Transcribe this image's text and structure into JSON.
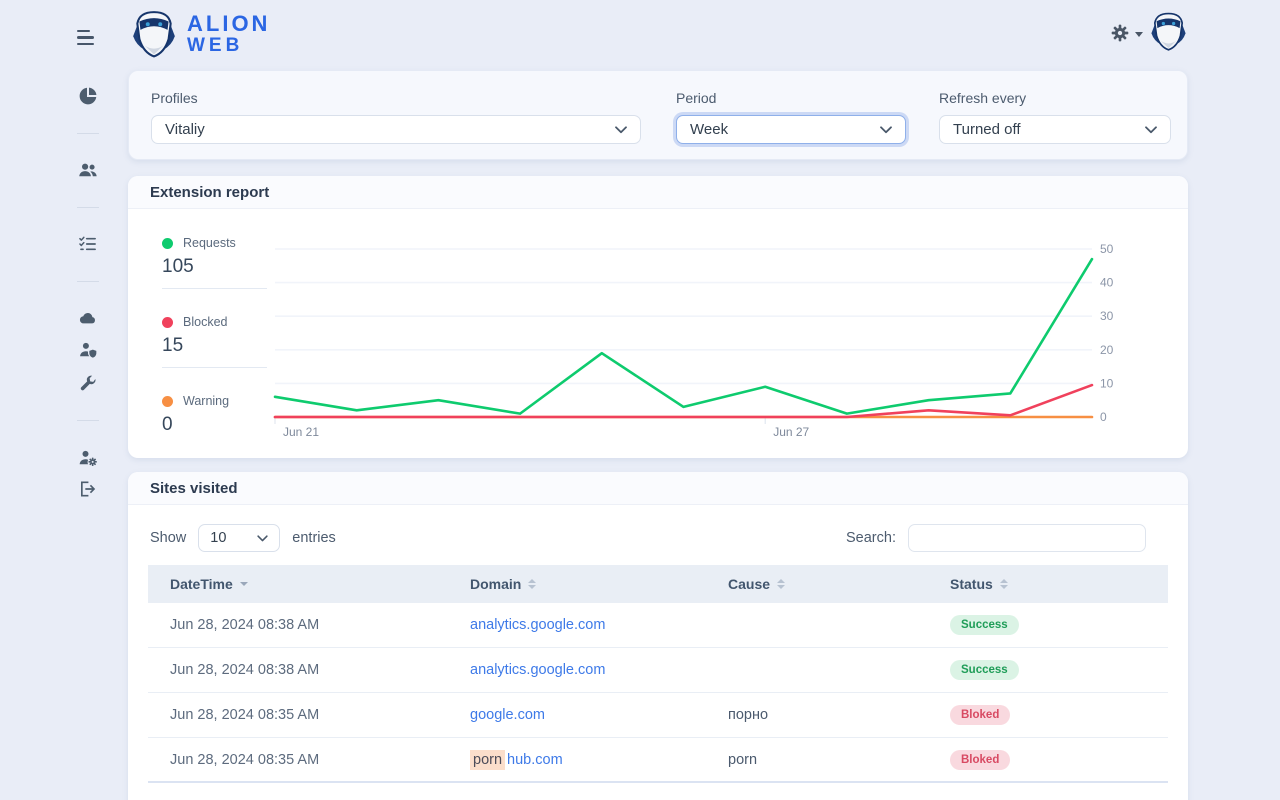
{
  "app": {
    "brand_line1": "ALION",
    "brand_line2": "WEB"
  },
  "header": {
    "menu_icon": "hamburger-menu",
    "gear_icon": "settings-gear",
    "avatar_icon": "robot-avatar"
  },
  "sidebar": {
    "items": [
      {
        "icon": "pie-chart"
      },
      {
        "divider": true
      },
      {
        "icon": "users"
      },
      {
        "divider": true
      },
      {
        "icon": "checklist"
      },
      {
        "divider": true
      },
      {
        "icon": "cloud"
      },
      {
        "icon": "user-shield"
      },
      {
        "icon": "wrench"
      },
      {
        "divider": true
      },
      {
        "icon": "user-gear"
      },
      {
        "icon": "logout"
      }
    ]
  },
  "filters": {
    "profiles": {
      "label": "Profiles",
      "value": "Vitaliy"
    },
    "period": {
      "label": "Period",
      "value": "Week",
      "focused": true
    },
    "refresh": {
      "label": "Refresh every",
      "value": "Turned off"
    }
  },
  "report": {
    "title": "Extension report",
    "legend": [
      {
        "label": "Requests",
        "value": "105",
        "color": "#0ecb6e"
      },
      {
        "label": "Blocked",
        "value": "15",
        "color": "#f0415c"
      },
      {
        "label": "Warning",
        "value": "0",
        "color": "#f78f43"
      }
    ]
  },
  "chart_data": {
    "type": "line",
    "x_labels": [
      "Jun 21",
      "",
      "",
      "",
      "",
      "",
      "Jun 27",
      "",
      "",
      "",
      ""
    ],
    "series": [
      {
        "name": "Requests",
        "color": "#0ecb6e",
        "values": [
          6,
          2,
          5,
          1,
          19,
          3,
          9,
          1,
          5,
          7,
          47
        ]
      },
      {
        "name": "Blocked",
        "color": "#f0415c",
        "values": [
          0,
          0,
          0,
          0,
          0,
          0,
          0,
          0,
          2,
          0.5,
          9.5
        ]
      },
      {
        "name": "Warning",
        "color": "#f78f43",
        "values": [
          0,
          0,
          0,
          0,
          0,
          0,
          0,
          0,
          0,
          0,
          0
        ]
      }
    ],
    "ylim": [
      0,
      50
    ],
    "yticks": [
      0,
      10,
      20,
      30,
      40,
      50
    ],
    "y_axis_side": "right",
    "xticks_visible": [
      {
        "index": 0,
        "label": "Jun 21"
      },
      {
        "index": 6,
        "label": "Jun 27"
      }
    ],
    "grid": true,
    "legend_position": "left"
  },
  "sites": {
    "title": "Sites visited",
    "show_label": "Show",
    "page_size": "10",
    "entries_label": "entries",
    "search_label": "Search:",
    "search_value": "",
    "columns": [
      {
        "label": "DateTime",
        "sort": "desc"
      },
      {
        "label": "Domain",
        "sort": "both"
      },
      {
        "label": "Cause",
        "sort": "both"
      },
      {
        "label": "Status",
        "sort": "both"
      }
    ],
    "rows": [
      {
        "datetime": "Jun 28, 2024 08:38 AM",
        "domain_highlight": "",
        "domain_link": "analytics.google.com",
        "cause": "",
        "status": "Success",
        "status_type": "success"
      },
      {
        "datetime": "Jun 28, 2024 08:38 AM",
        "domain_highlight": "",
        "domain_link": "analytics.google.com",
        "cause": "",
        "status": "Success",
        "status_type": "success"
      },
      {
        "datetime": "Jun 28, 2024 08:35 AM",
        "domain_highlight": "",
        "domain_link": "google.com",
        "cause": "порно",
        "status": "Bloked",
        "status_type": "blocked"
      },
      {
        "datetime": "Jun 28, 2024 08:35 AM",
        "domain_highlight": "porn",
        "domain_link": "hub.com",
        "cause": "porn",
        "status": "Bloked",
        "status_type": "blocked"
      }
    ]
  },
  "colors": {
    "page_bg": "#e9edf7",
    "accent_blue": "#2b66e3",
    "link": "#3e7ae8",
    "success_text": "#1f9d58",
    "success_bg": "#dbf3e5",
    "blocked_text": "#d84a63",
    "blocked_bg": "#f9d9df",
    "highlight_bg": "#fbdecb"
  }
}
